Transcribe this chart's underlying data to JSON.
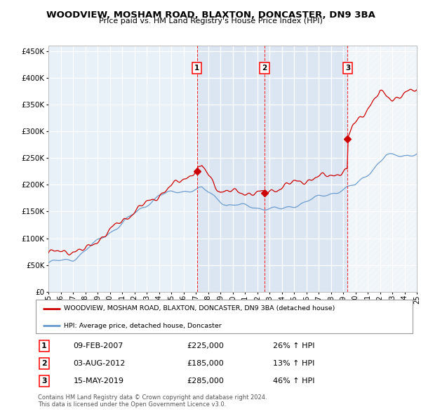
{
  "title": "WOODVIEW, MOSHAM ROAD, BLAXTON, DONCASTER, DN9 3BA",
  "subtitle": "Price paid vs. HM Land Registry's House Price Index (HPI)",
  "legend_house": "WOODVIEW, MOSHAM ROAD, BLAXTON, DONCASTER, DN9 3BA (detached house)",
  "legend_hpi": "HPI: Average price, detached house, Doncaster",
  "transactions": [
    {
      "num": 1,
      "date": "09-FEB-2007",
      "price": 225000,
      "hpi_pct": "26% ↑ HPI",
      "year": 2007.1
    },
    {
      "num": 2,
      "date": "03-AUG-2012",
      "price": 185000,
      "hpi_pct": "13% ↑ HPI",
      "year": 2012.6
    },
    {
      "num": 3,
      "date": "15-MAY-2019",
      "price": 285000,
      "hpi_pct": "46% ↑ HPI",
      "year": 2019.37
    }
  ],
  "footer1": "Contains HM Land Registry data © Crown copyright and database right 2024.",
  "footer2": "This data is licensed under the Open Government Licence v3.0.",
  "house_color": "#cc0000",
  "hpi_color": "#6699cc",
  "chart_bg": "#e8f0f8",
  "grid_color": "#ffffff",
  "ylim": [
    0,
    460000
  ],
  "xlim_start": 1995,
  "xlim_end": 2025
}
